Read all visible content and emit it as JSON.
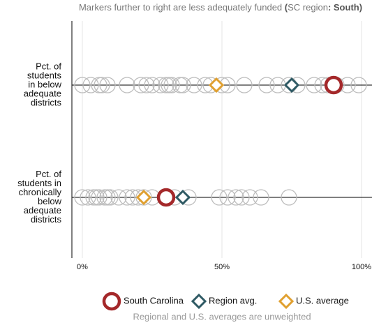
{
  "chart_data": {
    "type": "dotplot",
    "title_parts": [
      {
        "text": "Markers further to right are less adequately funded ",
        "bold": false
      },
      {
        "text": "(",
        "bold": true
      },
      {
        "text": "SC region",
        "bold": false
      },
      {
        "text": ": ",
        "bold": true
      },
      {
        "text": "South)",
        "bold": true
      }
    ],
    "categories": [
      [
        "Pct. of",
        "students",
        "in below",
        "adequate",
        "districts"
      ],
      [
        "Pct. of",
        "students in",
        "chronically",
        "below",
        "adequate",
        "districts"
      ]
    ],
    "points": [
      [
        0,
        3,
        6,
        7,
        9,
        16,
        21,
        23,
        25,
        28,
        30,
        31,
        32,
        35,
        36,
        40,
        44,
        46,
        50,
        52,
        58,
        66,
        70,
        74,
        77,
        83,
        86,
        88,
        91,
        95,
        99
      ],
      [
        0,
        2,
        4,
        5,
        6,
        8,
        9,
        10,
        13,
        16,
        18,
        20,
        22,
        25,
        30,
        33,
        38,
        49,
        52,
        55,
        57,
        60,
        64,
        74
      ]
    ],
    "points_color": "#bdbdbd",
    "series": [
      {
        "name": "South Carolina",
        "color": "#a4282a",
        "marker": "circle",
        "values": [
          90,
          30
        ]
      },
      {
        "name": "Region avg.",
        "color": "#2f5a64",
        "marker": "diamond",
        "values": [
          75,
          36
        ]
      },
      {
        "name": "U.S. average",
        "color": "#e0a030",
        "marker": "diamond",
        "values": [
          48,
          22
        ]
      }
    ],
    "xlim": [
      -3.75,
      103.75
    ],
    "xticks": [
      {
        "value": 0,
        "label": "0%"
      },
      {
        "value": 50,
        "label": "50%"
      },
      {
        "value": 100,
        "label": "100%"
      }
    ],
    "grid": true,
    "note": "Regional and U.S. averages are unweighted"
  }
}
